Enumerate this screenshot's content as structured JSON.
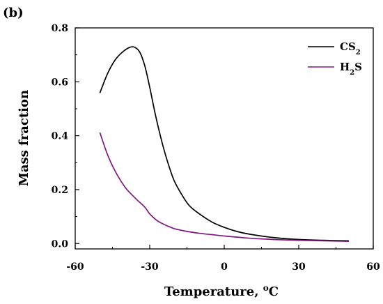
{
  "chart_data": {
    "type": "line",
    "panel_label": "(b)",
    "xlabel": "Temperature, ",
    "xlabel_super": "o",
    "xlabel_unit": "C",
    "ylabel": "Mass fraction",
    "xlim": [
      -60,
      60
    ],
    "ylim": [
      -0.02,
      0.8
    ],
    "xticks": [
      -60,
      -30,
      0,
      30,
      60
    ],
    "yticks": [
      0.0,
      0.2,
      0.4,
      0.6,
      0.8
    ],
    "xtick_labels": [
      "-60",
      "-30",
      "0",
      "30",
      "60"
    ],
    "ytick_labels": [
      "0.0",
      "0.2",
      "0.4",
      "0.6",
      "0.8"
    ],
    "grid": false,
    "legend_position": "top-right",
    "series": [
      {
        "name": "CS",
        "name_sub": "2",
        "name_suffix": "",
        "color": "#000000",
        "x": [
          -50,
          -47,
          -44,
          -41,
          -38,
          -36,
          -34,
          -32,
          -30,
          -28,
          -26,
          -24,
          -22,
          -20,
          -17,
          -14,
          -10,
          -5,
          0,
          5,
          10,
          20,
          30,
          40,
          50
        ],
        "y": [
          0.56,
          0.63,
          0.68,
          0.71,
          0.728,
          0.728,
          0.71,
          0.66,
          0.58,
          0.49,
          0.41,
          0.34,
          0.28,
          0.23,
          0.18,
          0.14,
          0.11,
          0.08,
          0.06,
          0.045,
          0.035,
          0.022,
          0.015,
          0.012,
          0.01
        ]
      },
      {
        "name": "H",
        "name_sub": "2",
        "name_suffix": "S",
        "color": "#80177f",
        "x": [
          -50,
          -47,
          -44,
          -40,
          -36,
          -32,
          -30,
          -27,
          -24,
          -22,
          -20,
          -15,
          -10,
          -5,
          0,
          10,
          20,
          30,
          40,
          50
        ],
        "y": [
          0.41,
          0.33,
          0.27,
          0.21,
          0.17,
          0.135,
          0.11,
          0.085,
          0.07,
          0.062,
          0.055,
          0.045,
          0.038,
          0.033,
          0.028,
          0.02,
          0.015,
          0.012,
          0.01,
          0.008
        ]
      }
    ]
  }
}
